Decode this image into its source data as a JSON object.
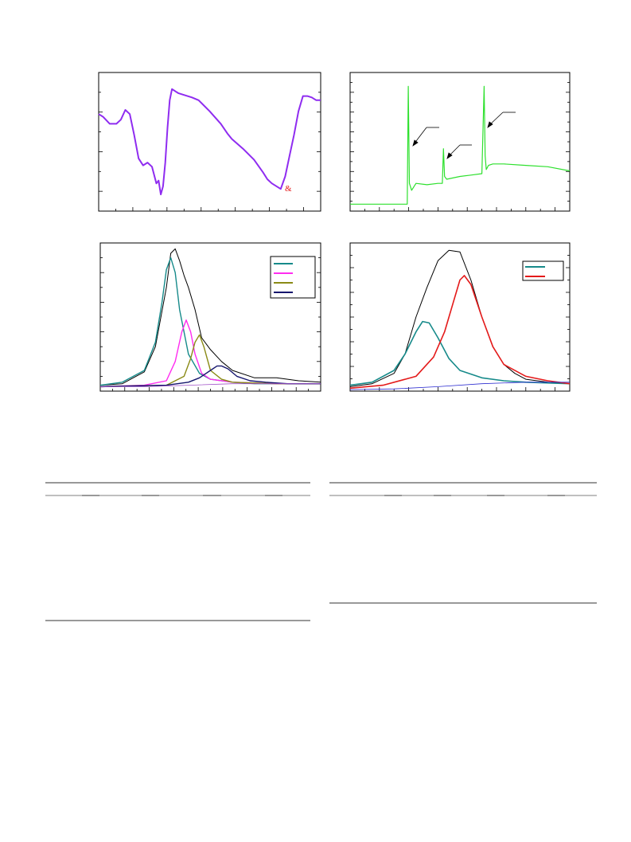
{
  "chart_data": [
    {
      "id": "panel-a",
      "type": "line",
      "title": "",
      "xlabel": "",
      "ylabel": "",
      "annotation": "&",
      "series": [
        {
          "color": "#8f2cf0",
          "x": [
            0,
            0.02,
            0.05,
            0.08,
            0.1,
            0.12,
            0.14,
            0.16,
            0.18,
            0.2,
            0.22,
            0.24,
            0.26,
            0.27,
            0.28,
            0.29,
            0.3,
            0.31,
            0.32,
            0.33,
            0.34,
            0.35,
            0.36,
            0.38,
            0.4,
            0.42,
            0.45,
            0.5,
            0.55,
            0.58,
            0.6,
            0.65,
            0.7,
            0.74,
            0.76,
            0.78,
            0.8,
            0.82,
            0.84,
            0.86,
            0.88,
            0.9,
            0.92,
            0.94,
            0.96,
            0.98,
            1.0
          ],
          "y": [
            0.7,
            0.68,
            0.63,
            0.63,
            0.66,
            0.73,
            0.7,
            0.55,
            0.38,
            0.33,
            0.35,
            0.32,
            0.2,
            0.22,
            0.12,
            0.18,
            0.35,
            0.6,
            0.8,
            0.88,
            0.87,
            0.86,
            0.85,
            0.84,
            0.83,
            0.82,
            0.8,
            0.72,
            0.63,
            0.56,
            0.52,
            0.45,
            0.37,
            0.28,
            0.23,
            0.2,
            0.18,
            0.16,
            0.25,
            0.4,
            0.55,
            0.72,
            0.83,
            0.83,
            0.82,
            0.8,
            0.8
          ]
        }
      ]
    },
    {
      "id": "panel-b",
      "type": "line",
      "title": "",
      "xlabel": "",
      "ylabel": "",
      "series": [
        {
          "color": "#2ee02e",
          "x": [
            0,
            0.1,
            0.2,
            0.25,
            0.26,
            0.265,
            0.27,
            0.28,
            0.3,
            0.35,
            0.4,
            0.42,
            0.425,
            0.43,
            0.44,
            0.5,
            0.55,
            0.6,
            0.61,
            0.615,
            0.62,
            0.63,
            0.65,
            0.7,
            0.8,
            0.9,
            1.0
          ],
          "y": [
            0.05,
            0.05,
            0.05,
            0.05,
            0.05,
            0.9,
            0.2,
            0.15,
            0.2,
            0.19,
            0.2,
            0.2,
            0.45,
            0.25,
            0.23,
            0.25,
            0.26,
            0.27,
            0.9,
            0.4,
            0.3,
            0.33,
            0.34,
            0.34,
            0.33,
            0.32,
            0.29
          ]
        }
      ]
    },
    {
      "id": "panel-c",
      "type": "line",
      "title": "",
      "xlabel": "",
      "ylabel": "",
      "legend": {
        "position": "top-right",
        "colors": [
          "#168a8a",
          "#ff2cf0",
          "#8a8a16",
          "#16166e"
        ]
      },
      "series": [
        {
          "color": "#000000",
          "x": [
            0,
            0.1,
            0.2,
            0.25,
            0.3,
            0.32,
            0.34,
            0.36,
            0.38,
            0.4,
            0.43,
            0.46,
            0.5,
            0.55,
            0.6,
            0.7,
            0.8,
            0.9,
            1.0
          ],
          "y": [
            0.04,
            0.05,
            0.13,
            0.3,
            0.7,
            0.93,
            0.96,
            0.88,
            0.78,
            0.7,
            0.55,
            0.36,
            0.28,
            0.2,
            0.14,
            0.09,
            0.09,
            0.07,
            0.06
          ]
        },
        {
          "color": "#168a8a",
          "x": [
            0,
            0.1,
            0.2,
            0.25,
            0.28,
            0.3,
            0.32,
            0.34,
            0.36,
            0.4,
            0.45,
            0.5,
            0.6,
            0.7,
            0.8,
            1.0
          ],
          "y": [
            0.04,
            0.06,
            0.14,
            0.33,
            0.6,
            0.82,
            0.9,
            0.8,
            0.55,
            0.25,
            0.12,
            0.08,
            0.06,
            0.05,
            0.05,
            0.05
          ]
        },
        {
          "color": "#ff2cf0",
          "x": [
            0,
            0.2,
            0.3,
            0.34,
            0.37,
            0.39,
            0.41,
            0.43,
            0.46,
            0.5,
            0.6,
            0.8,
            1.0
          ],
          "y": [
            0.03,
            0.04,
            0.07,
            0.2,
            0.4,
            0.48,
            0.4,
            0.25,
            0.12,
            0.08,
            0.06,
            0.05,
            0.05
          ]
        },
        {
          "color": "#8a8a16",
          "x": [
            0,
            0.3,
            0.38,
            0.41,
            0.43,
            0.45,
            0.47,
            0.5,
            0.55,
            0.6,
            0.8,
            1.0
          ],
          "y": [
            0.03,
            0.04,
            0.1,
            0.22,
            0.33,
            0.38,
            0.3,
            0.14,
            0.08,
            0.06,
            0.05,
            0.05
          ]
        },
        {
          "color": "#16166e",
          "x": [
            0,
            0.3,
            0.4,
            0.45,
            0.5,
            0.53,
            0.55,
            0.58,
            0.62,
            0.68,
            0.75,
            0.85,
            1.0
          ],
          "y": [
            0.03,
            0.04,
            0.06,
            0.09,
            0.14,
            0.17,
            0.17,
            0.15,
            0.1,
            0.07,
            0.06,
            0.05,
            0.05
          ]
        },
        {
          "color": "#a050c8",
          "x": [
            0,
            0.2,
            0.4,
            0.6,
            0.8,
            1.0
          ],
          "y": [
            0.03,
            0.03,
            0.04,
            0.05,
            0.05,
            0.05
          ]
        }
      ]
    },
    {
      "id": "panel-d",
      "type": "line",
      "title": "",
      "xlabel": "",
      "ylabel": "",
      "legend": {
        "position": "top-right",
        "colors": [
          "#168a8a",
          "#e41a1a"
        ]
      },
      "series": [
        {
          "color": "#000000",
          "x": [
            0,
            0.1,
            0.2,
            0.25,
            0.3,
            0.35,
            0.4,
            0.45,
            0.5,
            0.55,
            0.6,
            0.65,
            0.7,
            0.75,
            0.8,
            0.9,
            1.0
          ],
          "y": [
            0.03,
            0.05,
            0.12,
            0.25,
            0.5,
            0.7,
            0.88,
            0.95,
            0.94,
            0.75,
            0.5,
            0.3,
            0.18,
            0.12,
            0.08,
            0.06,
            0.05
          ]
        },
        {
          "color": "#168a8a",
          "x": [
            0,
            0.1,
            0.2,
            0.25,
            0.3,
            0.33,
            0.36,
            0.4,
            0.45,
            0.5,
            0.6,
            0.7,
            0.8,
            1.0
          ],
          "y": [
            0.04,
            0.06,
            0.14,
            0.25,
            0.4,
            0.47,
            0.46,
            0.36,
            0.22,
            0.14,
            0.09,
            0.07,
            0.06,
            0.05
          ]
        },
        {
          "color": "#e41a1a",
          "x": [
            0,
            0.15,
            0.3,
            0.38,
            0.43,
            0.47,
            0.5,
            0.52,
            0.55,
            0.6,
            0.65,
            0.7,
            0.8,
            0.9,
            1.0
          ],
          "y": [
            0.02,
            0.04,
            0.1,
            0.23,
            0.4,
            0.6,
            0.75,
            0.78,
            0.72,
            0.5,
            0.3,
            0.18,
            0.1,
            0.07,
            0.05
          ]
        },
        {
          "color": "#2c2cd0",
          "x": [
            0,
            0.2,
            0.4,
            0.6,
            0.8,
            1.0
          ],
          "y": [
            0.01,
            0.015,
            0.03,
            0.05,
            0.06,
            0.06
          ]
        }
      ]
    }
  ],
  "tables": [
    {
      "id": "table-left"
    },
    {
      "id": "table-right"
    }
  ]
}
